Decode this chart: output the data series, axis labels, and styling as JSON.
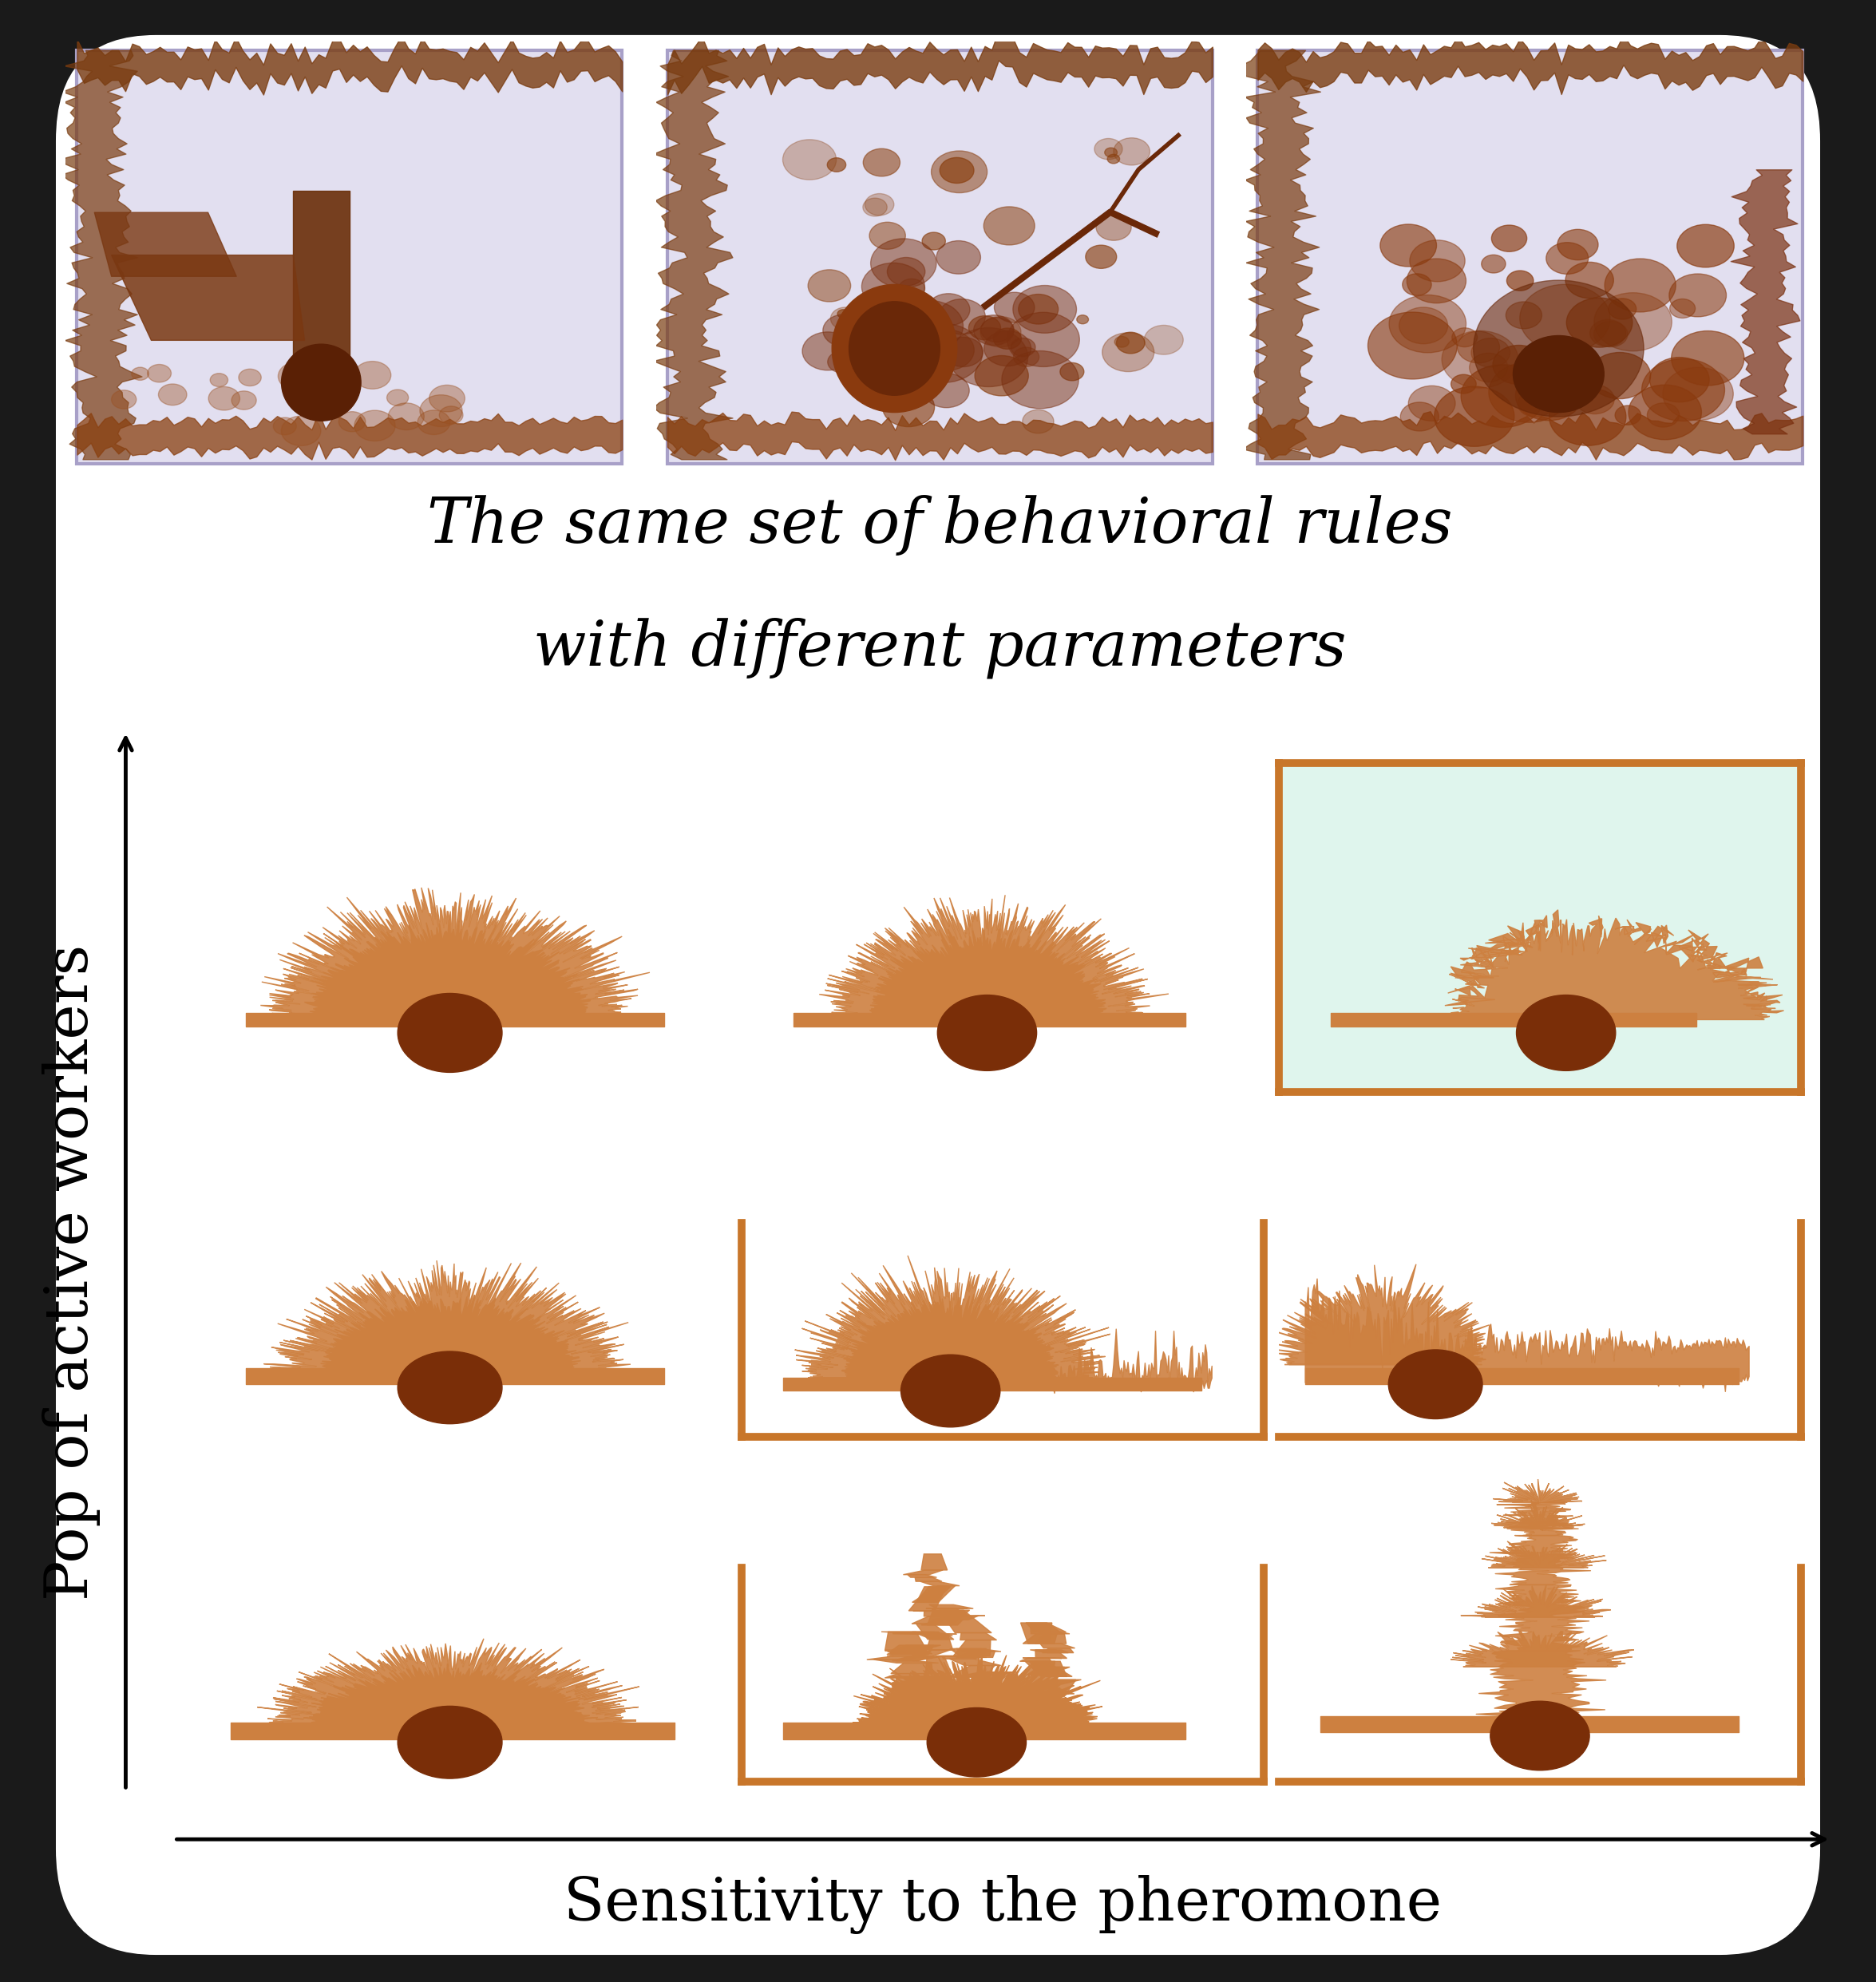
{
  "background_color": "#1a1a1a",
  "white_bg": "#ffffff",
  "title_line1": "The same set of behavioral rules",
  "title_line2": "with different parameters",
  "title_fontsize": 56,
  "ylabel": "Pop of active workers",
  "xlabel": "Sensitivity to the pheromone",
  "axis_fontsize": 54,
  "cell_bg": "#dff5ed",
  "tube_color": "#cd8040",
  "tube_color2": "#c97835",
  "tube_dark": "#7a2e08",
  "border_color": "#c8762a",
  "border_width": 7,
  "photo_bg": "#ccc8e0",
  "photo_inner_bg": "#e8e6f2"
}
